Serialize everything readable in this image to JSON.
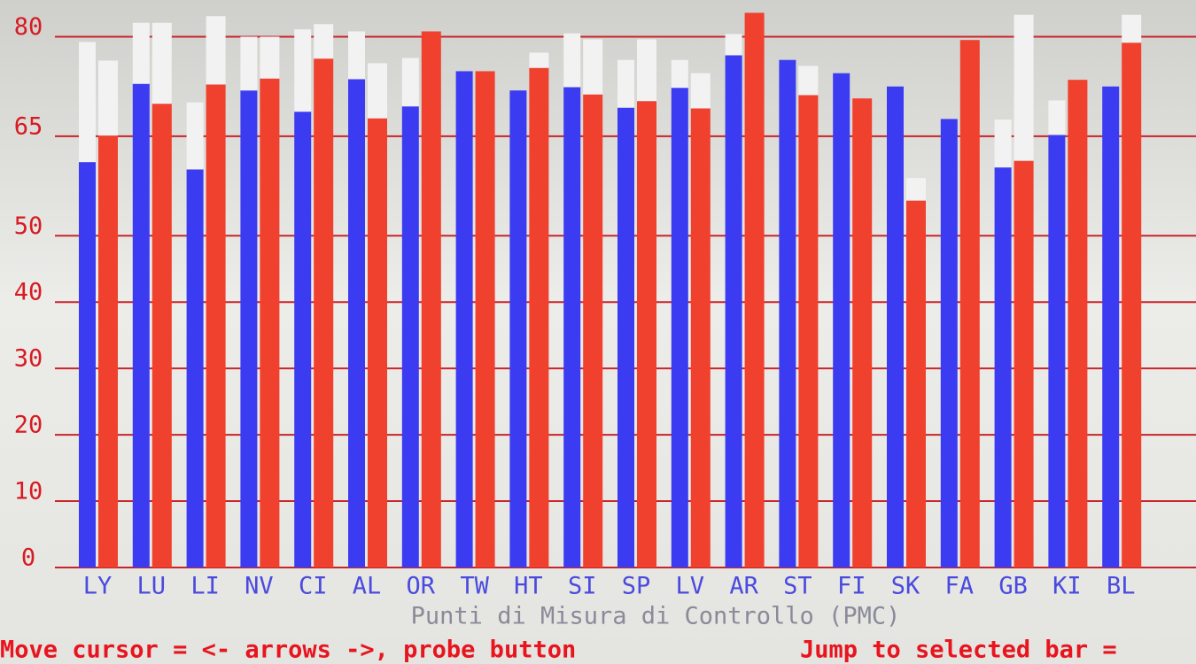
{
  "chart_data": {
    "type": "bar",
    "categories": [
      "LY",
      "LU",
      "LI",
      "NV",
      "CI",
      "AL",
      "OR",
      "TW",
      "HT",
      "SI",
      "SP",
      "LV",
      "AR",
      "ST",
      "FI",
      "SK",
      "FA",
      "GB",
      "KI",
      "BL"
    ],
    "series": [
      {
        "color": "#3b3cf2",
        "cap_color": "#f2f2f2",
        "values": [
          61.1,
          72.9,
          60.0,
          71.9,
          68.7,
          73.6,
          69.5,
          74.8,
          71.9,
          72.4,
          69.3,
          72.3,
          77.2,
          76.5,
          74.5,
          72.5,
          67.6,
          60.3,
          65.2,
          72.5
        ],
        "cap_values": [
          18.1,
          9.2,
          10.1,
          8.1,
          12.4,
          7.2,
          7.3,
          null,
          null,
          8.1,
          7.2,
          4.2,
          3.2,
          null,
          null,
          null,
          null,
          7.2,
          5.2,
          null
        ]
      },
      {
        "color": "#f0402e",
        "cap_color": "#f2f2f2",
        "values": [
          65.1,
          69.9,
          72.8,
          73.7,
          76.7,
          67.7,
          80.8,
          74.8,
          75.3,
          71.3,
          70.3,
          69.2,
          83.6,
          71.2,
          70.7,
          55.3,
          79.5,
          61.3,
          73.5,
          79.1
        ],
        "cap_values": [
          11.3,
          12.2,
          10.3,
          6.3,
          5.2,
          8.3,
          null,
          null,
          2.3,
          8.3,
          9.3,
          5.3,
          null,
          4.4,
          null,
          3.4,
          null,
          22.0,
          null,
          4.2
        ]
      }
    ],
    "ylim": [
      0,
      85
    ],
    "yticks": [
      0,
      10,
      20,
      30,
      40,
      50,
      65,
      80
    ],
    "grid": true,
    "x_label": "Punti di Misura di Controllo (PMC)",
    "footer_left": "Move cursor = <- arrows ->, probe button",
    "footer_right": "Jump to selected bar ="
  }
}
